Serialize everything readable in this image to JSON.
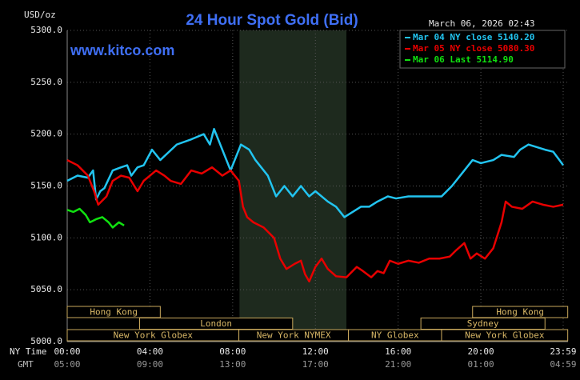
{
  "chart_data": {
    "type": "line",
    "title": "24 Hour Spot Gold (Bid)",
    "timestamp": "March 06, 2026 02:43",
    "watermark": "www.kitco.com",
    "y_label": "USD/oz",
    "x_row_labels": [
      "NY Time",
      "GMT"
    ],
    "ylim": [
      5000,
      5300
    ],
    "yticks": [
      {
        "value": 5000,
        "label": "5000.0"
      },
      {
        "value": 5050,
        "label": "5050.0"
      },
      {
        "value": 5100,
        "label": "5100.0"
      },
      {
        "value": 5150,
        "label": "5150.0"
      },
      {
        "value": 5200,
        "label": "5200.0"
      },
      {
        "value": 5250,
        "label": "5250.0"
      },
      {
        "value": 5300,
        "label": "5300.0"
      }
    ],
    "xlim": [
      0,
      24
    ],
    "xticks": [
      {
        "value": 0,
        "label": "00:00"
      },
      {
        "value": 4,
        "label": "04:00"
      },
      {
        "value": 8,
        "label": "08:00"
      },
      {
        "value": 12,
        "label": "12:00"
      },
      {
        "value": 16,
        "label": "16:00"
      },
      {
        "value": 20,
        "label": "20:00"
      },
      {
        "value": 23.98,
        "label": "23:59"
      }
    ],
    "gmt_tick_labels": [
      "05:00",
      "09:00",
      "13:00",
      "17:00",
      "21:00",
      "01:00",
      "04:59"
    ],
    "grid": true,
    "highlight": [
      8.33,
      13.5
    ],
    "sessions": [
      {
        "label": "Hong Kong",
        "start": 0,
        "end": 4.5,
        "row": 0
      },
      {
        "label": "Hong Kong",
        "start": 19.6,
        "end": 24.2,
        "row": 0
      },
      {
        "label": "London",
        "start": 3.5,
        "end": 10.9,
        "row": 1
      },
      {
        "label": "Sydney",
        "start": 17.1,
        "end": 23.1,
        "row": 1
      },
      {
        "label": "New York Globex",
        "start": 0,
        "end": 8.3,
        "row": 2
      },
      {
        "label": "New York NYMEX",
        "start": 8.3,
        "end": 13.6,
        "row": 2
      },
      {
        "label": "NY Globex",
        "start": 13.6,
        "end": 18.1,
        "row": 2
      },
      {
        "label": "New York Globex",
        "start": 18.1,
        "end": 24.2,
        "row": 2
      }
    ],
    "series": [
      {
        "name": "Mar 04 NY close 5140.20",
        "color": "#22c4f0",
        "x": [
          0,
          0.5,
          1,
          1.25,
          1.4,
          1.6,
          1.8,
          2.2,
          2.6,
          2.9,
          3.1,
          3.4,
          3.7,
          4.1,
          4.5,
          5.3,
          6,
          6.6,
          6.9,
          7.1,
          7.6,
          7.9,
          8.2,
          8.4,
          8.8,
          9.1,
          9.5,
          9.7,
          10.1,
          10.5,
          10.9,
          11.3,
          11.7,
          12.0,
          12.6,
          13.0,
          13.4,
          13.8,
          14.2,
          14.6,
          15.0,
          15.5,
          15.9,
          16.5,
          17.5,
          18.1,
          18.6,
          19,
          19.6,
          20,
          20.6,
          21,
          21.6,
          21.9,
          22.3,
          23.1,
          23.5,
          23.8,
          23.98
        ],
        "values": [
          5155,
          5160,
          5158,
          5165,
          5137,
          5145,
          5148,
          5165,
          5168,
          5170,
          5160,
          5168,
          5170,
          5185,
          5175,
          5190,
          5195,
          5200,
          5190,
          5205,
          5180,
          5165,
          5180,
          5190,
          5185,
          5175,
          5165,
          5160,
          5140,
          5150,
          5140,
          5150,
          5140,
          5145,
          5135,
          5130,
          5120,
          5125,
          5130,
          5130,
          5135,
          5140,
          5138,
          5140,
          5140,
          5140,
          5150,
          5160,
          5175,
          5172,
          5175,
          5180,
          5178,
          5185,
          5190,
          5185,
          5183,
          5175,
          5170
        ]
      },
      {
        "name": "Mar 05 NY close 5080.30",
        "color": "#e80000",
        "x": [
          0,
          0.5,
          1,
          1.3,
          1.5,
          1.9,
          2.2,
          2.6,
          3,
          3.4,
          3.7,
          4,
          4.3,
          4.7,
          5,
          5.5,
          6,
          6.5,
          7,
          7.5,
          7.9,
          8.3,
          8.5,
          8.7,
          9,
          9.5,
          10,
          10.3,
          10.6,
          11,
          11.3,
          11.5,
          11.7,
          12,
          12.3,
          12.6,
          13,
          13.5,
          14,
          14.3,
          14.7,
          15,
          15.3,
          15.6,
          16,
          16.5,
          17,
          17.5,
          18,
          18.5,
          18.8,
          19.2,
          19.5,
          19.8,
          20.2,
          20.6,
          21,
          21.2,
          21.5,
          22,
          22.5,
          23,
          23.5,
          23.98
        ],
        "values": [
          5175,
          5170,
          5160,
          5145,
          5132,
          5140,
          5155,
          5160,
          5158,
          5145,
          5155,
          5160,
          5165,
          5160,
          5155,
          5152,
          5165,
          5162,
          5168,
          5160,
          5165,
          5155,
          5130,
          5120,
          5115,
          5110,
          5100,
          5080,
          5070,
          5075,
          5078,
          5065,
          5058,
          5072,
          5080,
          5070,
          5063,
          5062,
          5072,
          5068,
          5062,
          5068,
          5066,
          5078,
          5075,
          5078,
          5076,
          5080,
          5080,
          5082,
          5088,
          5095,
          5080,
          5085,
          5080,
          5090,
          5115,
          5135,
          5130,
          5128,
          5135,
          5132,
          5130,
          5132
        ]
      },
      {
        "name": "Mar 06 Last 5114.90",
        "color": "#10e010",
        "x": [
          0,
          0.3,
          0.6,
          0.9,
          1.1,
          1.4,
          1.7,
          2.0,
          2.2,
          2.5,
          2.75
        ],
        "values": [
          5127,
          5125,
          5128,
          5122,
          5115,
          5118,
          5120,
          5115,
          5110,
          5115,
          5112
        ]
      }
    ]
  }
}
